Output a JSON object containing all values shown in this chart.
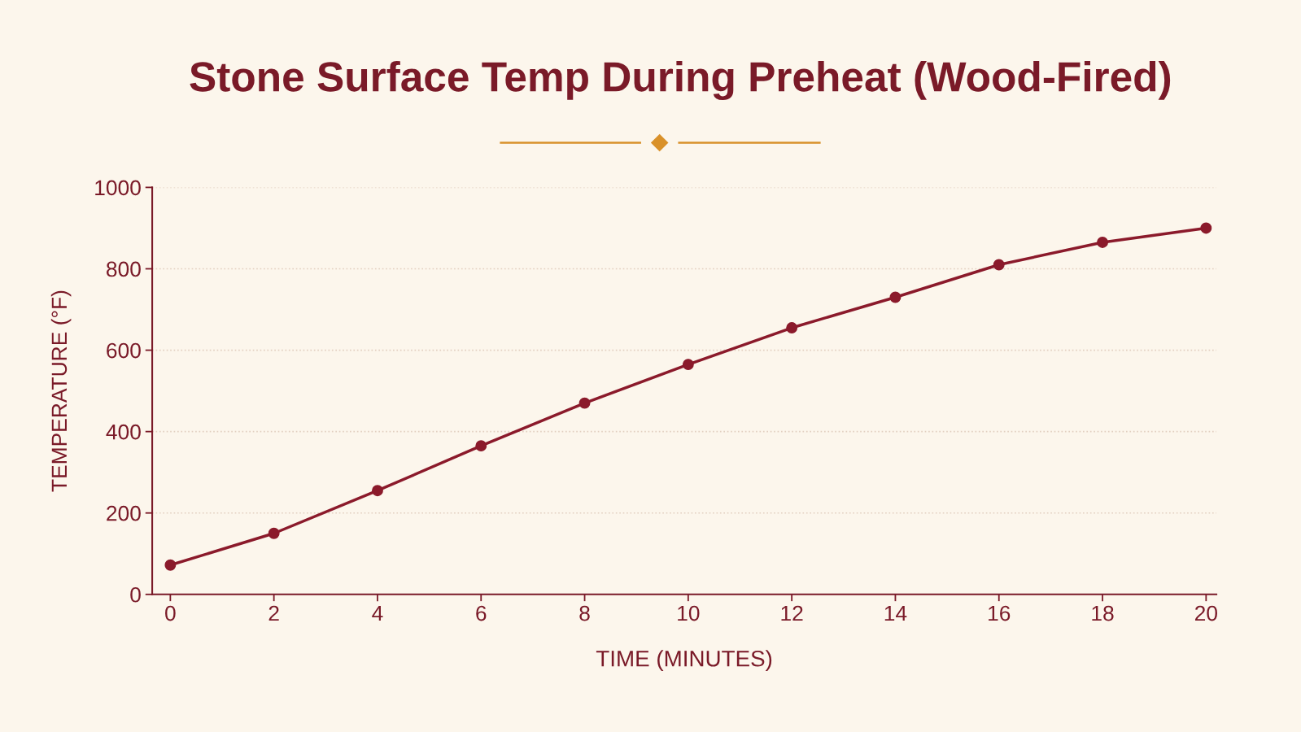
{
  "chart_data": {
    "type": "line",
    "title": "Stone Surface Temp During Preheat (Wood-Fired)",
    "xlabel": "TIME (MINUTES)",
    "ylabel": "TEMPERATURE (°F)",
    "x": [
      0,
      2,
      4,
      6,
      8,
      10,
      12,
      14,
      16,
      18,
      20
    ],
    "series": [
      {
        "color": "#8b1a2b",
        "values": [
          72,
          150,
          255,
          365,
          470,
          565,
          655,
          730,
          810,
          865,
          900
        ]
      }
    ],
    "xlim": [
      -0.35,
      20.2
    ],
    "xticks": [
      0,
      2,
      4,
      6,
      8,
      10,
      12,
      14,
      16,
      18,
      20
    ],
    "ylim": [
      0,
      1000
    ],
    "yticks": [
      0,
      200,
      400,
      600,
      800,
      1000
    ],
    "grid": "y",
    "marker": "circle",
    "line_style": "solid"
  }
}
